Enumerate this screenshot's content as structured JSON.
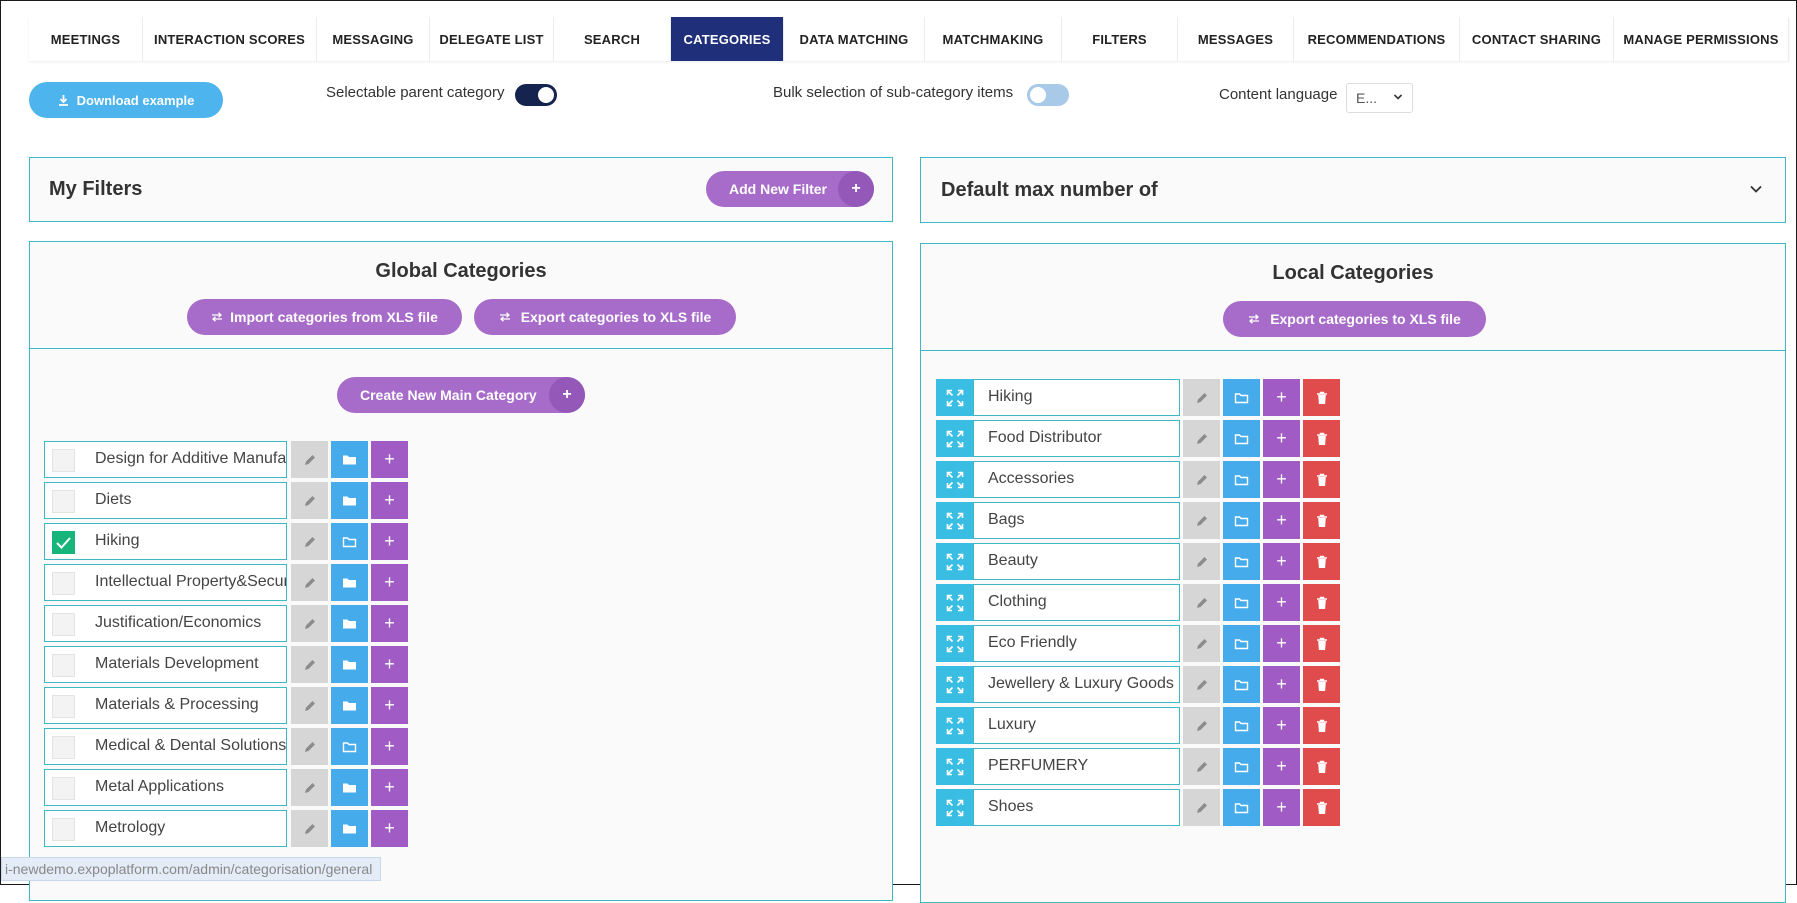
{
  "tabs": [
    {
      "label": "MEETINGS"
    },
    {
      "label": "INTERACTION SCORES"
    },
    {
      "label": "MESSAGING"
    },
    {
      "label": "DELEGATE LIST"
    },
    {
      "label": "SEARCH"
    },
    {
      "label": "CATEGORIES"
    },
    {
      "label": "DATA MATCHING"
    },
    {
      "label": "MATCHMAKING"
    },
    {
      "label": "FILTERS"
    },
    {
      "label": "MESSAGES"
    },
    {
      "label": "RECOMMENDATIONS"
    },
    {
      "label": "CONTACT SHARING"
    },
    {
      "label": "MANAGE PERMISSIONS"
    }
  ],
  "active_tab": "CATEGORIES",
  "toolbar": {
    "download_label": "Download example",
    "selectable_parent_label": "Selectable parent category",
    "selectable_parent_on": true,
    "bulk_selection_label": "Bulk selection of sub-category items",
    "bulk_selection_on": false,
    "content_language_label": "Content language",
    "content_language_value": "E..."
  },
  "my_filters": {
    "title": "My Filters",
    "add_button": "Add New Filter"
  },
  "default_max": {
    "title": "Default max number of"
  },
  "global": {
    "title": "Global Categories",
    "import_button": "Import categories from XLS file",
    "export_button": "Export categories to XLS file",
    "create_button": "Create New Main Category",
    "items": [
      {
        "label": "Design for Additive Manufacturing",
        "checked": false
      },
      {
        "label": "Diets",
        "checked": false
      },
      {
        "label": "Hiking",
        "checked": true
      },
      {
        "label": "Intellectual Property&Security",
        "checked": false
      },
      {
        "label": "Justification/Economics",
        "checked": false
      },
      {
        "label": "Materials Development",
        "checked": false
      },
      {
        "label": "Materials & Processing",
        "checked": false
      },
      {
        "label": "Medical & Dental Solutions",
        "checked": false
      },
      {
        "label": "Metal Applications",
        "checked": false
      },
      {
        "label": "Metrology",
        "checked": false
      }
    ]
  },
  "local": {
    "title": "Local Categories",
    "export_button": "Export categories to XLS file",
    "items": [
      {
        "label": "Hiking"
      },
      {
        "label": "Food Distributor"
      },
      {
        "label": "Accessories"
      },
      {
        "label": "Bags"
      },
      {
        "label": "Beauty"
      },
      {
        "label": "Clothing"
      },
      {
        "label": "Eco Friendly"
      },
      {
        "label": "Jewellery & Luxury Goods"
      },
      {
        "label": "Luxury"
      },
      {
        "label": "PERFUMERY"
      },
      {
        "label": "Shoes"
      }
    ]
  },
  "status_url": "i-newdemo.expoplatform.com/admin/categorisation/general",
  "colors": {
    "active_tab": "#1f2f7a",
    "panel_border": "#3fb8c4",
    "purple": "#a76bc9",
    "blue": "#45abea",
    "red": "#e04b4b",
    "green_check": "#17b57b",
    "cyan_expand": "#39bde3"
  },
  "icons": {
    "download": "download-icon",
    "toggle": "toggle-switch",
    "expand": "expand-arrows-icon",
    "edit": "pencil-icon",
    "folder": "folder-icon",
    "add": "plus-icon",
    "delete": "trash-icon",
    "check": "checkmark-icon",
    "swap": "swap-arrows-icon",
    "chevron": "chevron-down-icon"
  }
}
